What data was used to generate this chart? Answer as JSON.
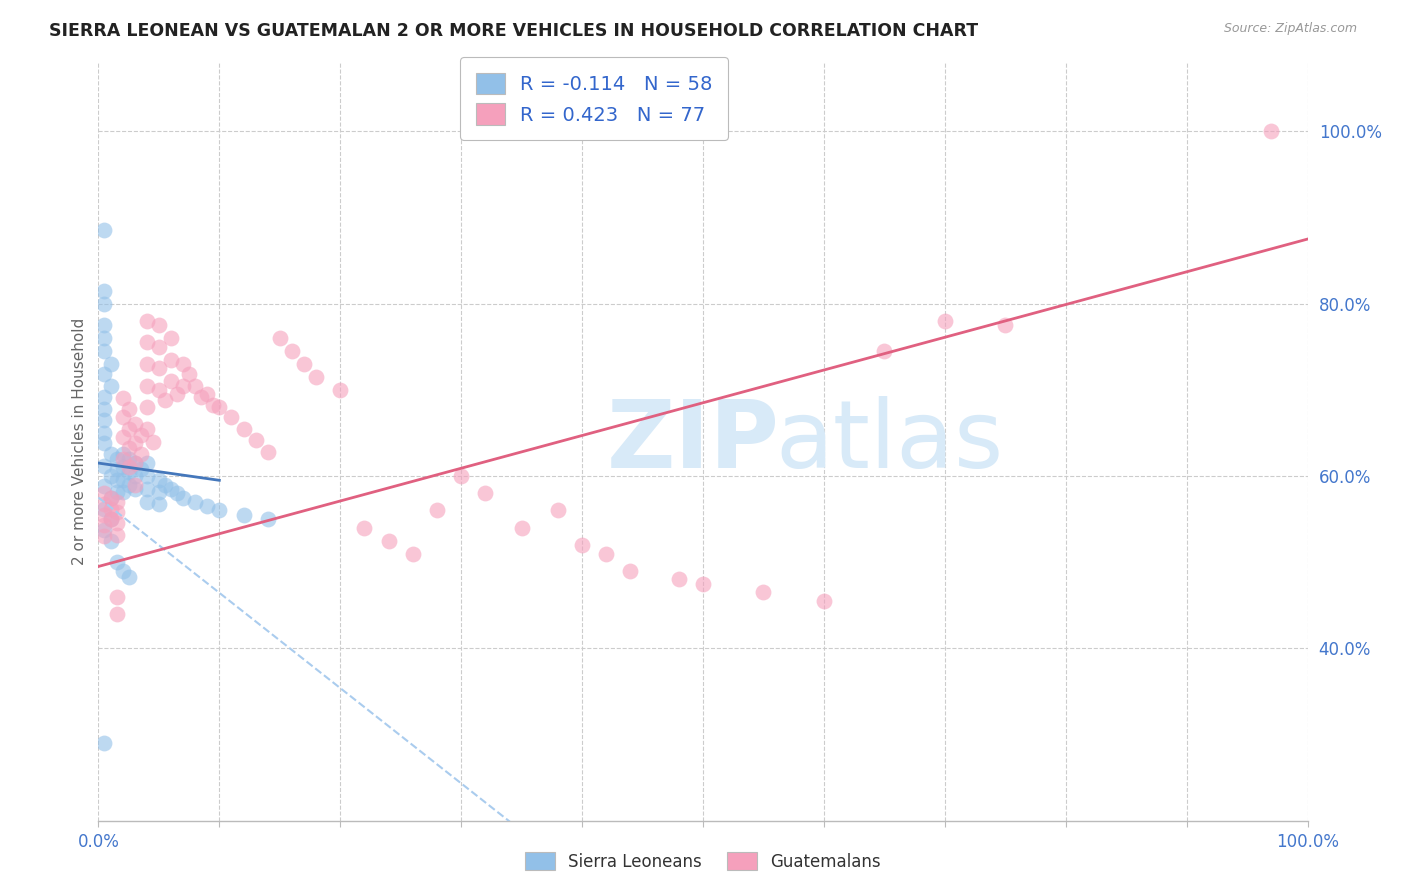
{
  "title": "SIERRA LEONEAN VS GUATEMALAN 2 OR MORE VEHICLES IN HOUSEHOLD CORRELATION CHART",
  "source": "Source: ZipAtlas.com",
  "ylabel": "2 or more Vehicles in Household",
  "blue_color": "#92C0E8",
  "pink_color": "#F5A0BC",
  "blue_line_color": "#4477BB",
  "pink_line_color": "#E06080",
  "dashed_line_color": "#AACCEE",
  "watermark_zip": "ZIP",
  "watermark_atlas": "atlas",
  "blue_line": [
    0.0,
    0.615,
    0.1,
    0.595
  ],
  "pink_line": [
    0.0,
    0.495,
    1.0,
    0.875
  ],
  "dash_line": [
    0.0,
    0.575,
    0.52,
    0.0
  ],
  "blue_points": [
    [
      0.005,
      0.885
    ],
    [
      0.005,
      0.815
    ],
    [
      0.005,
      0.8
    ],
    [
      0.005,
      0.775
    ],
    [
      0.005,
      0.76
    ],
    [
      0.005,
      0.745
    ],
    [
      0.01,
      0.73
    ],
    [
      0.005,
      0.718
    ],
    [
      0.01,
      0.705
    ],
    [
      0.005,
      0.692
    ],
    [
      0.005,
      0.678
    ],
    [
      0.005,
      0.665
    ],
    [
      0.005,
      0.65
    ],
    [
      0.005,
      0.638
    ],
    [
      0.01,
      0.625
    ],
    [
      0.005,
      0.612
    ],
    [
      0.01,
      0.6
    ],
    [
      0.005,
      0.588
    ],
    [
      0.01,
      0.575
    ],
    [
      0.005,
      0.562
    ],
    [
      0.01,
      0.55
    ],
    [
      0.005,
      0.537
    ],
    [
      0.01,
      0.525
    ],
    [
      0.015,
      0.62
    ],
    [
      0.015,
      0.608
    ],
    [
      0.015,
      0.595
    ],
    [
      0.015,
      0.582
    ],
    [
      0.02,
      0.625
    ],
    [
      0.02,
      0.61
    ],
    [
      0.02,
      0.595
    ],
    [
      0.02,
      0.582
    ],
    [
      0.025,
      0.62
    ],
    [
      0.025,
      0.605
    ],
    [
      0.025,
      0.59
    ],
    [
      0.03,
      0.615
    ],
    [
      0.03,
      0.6
    ],
    [
      0.03,
      0.585
    ],
    [
      0.035,
      0.608
    ],
    [
      0.04,
      0.615
    ],
    [
      0.04,
      0.6
    ],
    [
      0.04,
      0.585
    ],
    [
      0.04,
      0.57
    ],
    [
      0.05,
      0.595
    ],
    [
      0.05,
      0.582
    ],
    [
      0.05,
      0.567
    ],
    [
      0.055,
      0.59
    ],
    [
      0.06,
      0.585
    ],
    [
      0.065,
      0.58
    ],
    [
      0.07,
      0.575
    ],
    [
      0.08,
      0.57
    ],
    [
      0.09,
      0.565
    ],
    [
      0.1,
      0.56
    ],
    [
      0.12,
      0.555
    ],
    [
      0.14,
      0.55
    ],
    [
      0.015,
      0.5
    ],
    [
      0.02,
      0.49
    ],
    [
      0.025,
      0.483
    ],
    [
      0.005,
      0.29
    ]
  ],
  "pink_points": [
    [
      0.005,
      0.58
    ],
    [
      0.005,
      0.568
    ],
    [
      0.005,
      0.555
    ],
    [
      0.005,
      0.543
    ],
    [
      0.005,
      0.53
    ],
    [
      0.01,
      0.575
    ],
    [
      0.01,
      0.562
    ],
    [
      0.01,
      0.55
    ],
    [
      0.015,
      0.57
    ],
    [
      0.015,
      0.558
    ],
    [
      0.015,
      0.545
    ],
    [
      0.015,
      0.532
    ],
    [
      0.015,
      0.46
    ],
    [
      0.015,
      0.44
    ],
    [
      0.02,
      0.69
    ],
    [
      0.02,
      0.668
    ],
    [
      0.02,
      0.645
    ],
    [
      0.02,
      0.62
    ],
    [
      0.025,
      0.678
    ],
    [
      0.025,
      0.655
    ],
    [
      0.025,
      0.632
    ],
    [
      0.025,
      0.61
    ],
    [
      0.03,
      0.66
    ],
    [
      0.03,
      0.638
    ],
    [
      0.03,
      0.615
    ],
    [
      0.03,
      0.59
    ],
    [
      0.035,
      0.648
    ],
    [
      0.035,
      0.625
    ],
    [
      0.04,
      0.78
    ],
    [
      0.04,
      0.755
    ],
    [
      0.04,
      0.73
    ],
    [
      0.04,
      0.705
    ],
    [
      0.04,
      0.68
    ],
    [
      0.04,
      0.655
    ],
    [
      0.045,
      0.64
    ],
    [
      0.05,
      0.775
    ],
    [
      0.05,
      0.75
    ],
    [
      0.05,
      0.725
    ],
    [
      0.05,
      0.7
    ],
    [
      0.055,
      0.688
    ],
    [
      0.06,
      0.76
    ],
    [
      0.06,
      0.735
    ],
    [
      0.06,
      0.71
    ],
    [
      0.065,
      0.695
    ],
    [
      0.07,
      0.73
    ],
    [
      0.07,
      0.705
    ],
    [
      0.075,
      0.718
    ],
    [
      0.08,
      0.705
    ],
    [
      0.085,
      0.692
    ],
    [
      0.09,
      0.695
    ],
    [
      0.095,
      0.682
    ],
    [
      0.1,
      0.68
    ],
    [
      0.11,
      0.668
    ],
    [
      0.12,
      0.655
    ],
    [
      0.13,
      0.642
    ],
    [
      0.14,
      0.628
    ],
    [
      0.15,
      0.76
    ],
    [
      0.16,
      0.745
    ],
    [
      0.17,
      0.73
    ],
    [
      0.18,
      0.715
    ],
    [
      0.2,
      0.7
    ],
    [
      0.22,
      0.54
    ],
    [
      0.24,
      0.525
    ],
    [
      0.26,
      0.51
    ],
    [
      0.28,
      0.56
    ],
    [
      0.3,
      0.6
    ],
    [
      0.32,
      0.58
    ],
    [
      0.35,
      0.54
    ],
    [
      0.38,
      0.56
    ],
    [
      0.4,
      0.52
    ],
    [
      0.42,
      0.51
    ],
    [
      0.44,
      0.49
    ],
    [
      0.48,
      0.48
    ],
    [
      0.5,
      0.475
    ],
    [
      0.55,
      0.465
    ],
    [
      0.6,
      0.455
    ],
    [
      0.65,
      0.745
    ],
    [
      0.7,
      0.78
    ],
    [
      0.75,
      0.775
    ],
    [
      0.97,
      1.0
    ]
  ]
}
